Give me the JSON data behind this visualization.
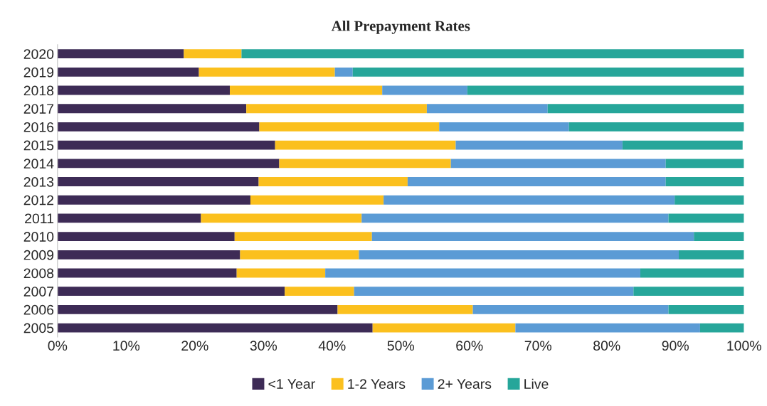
{
  "chart_data": {
    "type": "bar",
    "orientation": "horizontal",
    "stacked": true,
    "title": "All Prepayment Rates",
    "categories": [
      "2020",
      "2019",
      "2018",
      "2017",
      "2016",
      "2015",
      "2014",
      "2013",
      "2012",
      "2011",
      "2010",
      "2009",
      "2008",
      "2007",
      "2006",
      "2005"
    ],
    "series": [
      {
        "name": "<1 Year",
        "color": "#3d2b56",
        "values": [
          18.4,
          20.6,
          25.1,
          27.5,
          29.4,
          31.7,
          32.3,
          29.3,
          28.1,
          20.9,
          25.8,
          26.6,
          26.1,
          33.1,
          40.8,
          45.9
        ]
      },
      {
        "name": "1-2 Years",
        "color": "#fbc01e",
        "values": [
          8.4,
          19.8,
          22.2,
          26.3,
          26.2,
          26.3,
          25.0,
          21.7,
          19.4,
          23.4,
          20.0,
          17.3,
          12.9,
          10.1,
          19.7,
          20.8
        ]
      },
      {
        "name": "2+ Years",
        "color": "#5b9bd5",
        "values": [
          0,
          2.6,
          12.4,
          17.6,
          18.9,
          24.3,
          31.3,
          37.6,
          42.4,
          44.7,
          46.9,
          46.6,
          45.9,
          40.7,
          28.5,
          26.9
        ]
      },
      {
        "name": "Live",
        "color": "#26a69a",
        "values": [
          73.2,
          57.0,
          40.3,
          28.6,
          25.5,
          17.5,
          11.4,
          11.4,
          10.1,
          11.0,
          7.3,
          9.5,
          15.1,
          16.1,
          11.0,
          6.4
        ]
      }
    ],
    "xlim": [
      0,
      100
    ],
    "xticks": [
      {
        "value": 0,
        "label": "0%"
      },
      {
        "value": 10,
        "label": "10%"
      },
      {
        "value": 20,
        "label": "20%"
      },
      {
        "value": 30,
        "label": "30%"
      },
      {
        "value": 40,
        "label": "40%"
      },
      {
        "value": 50,
        "label": "50%"
      },
      {
        "value": 60,
        "label": "60%"
      },
      {
        "value": 70,
        "label": "70%"
      },
      {
        "value": 80,
        "label": "80%"
      },
      {
        "value": 90,
        "label": "90%"
      },
      {
        "value": 100,
        "label": "100%"
      }
    ],
    "grid": false,
    "legend": "bottom"
  }
}
